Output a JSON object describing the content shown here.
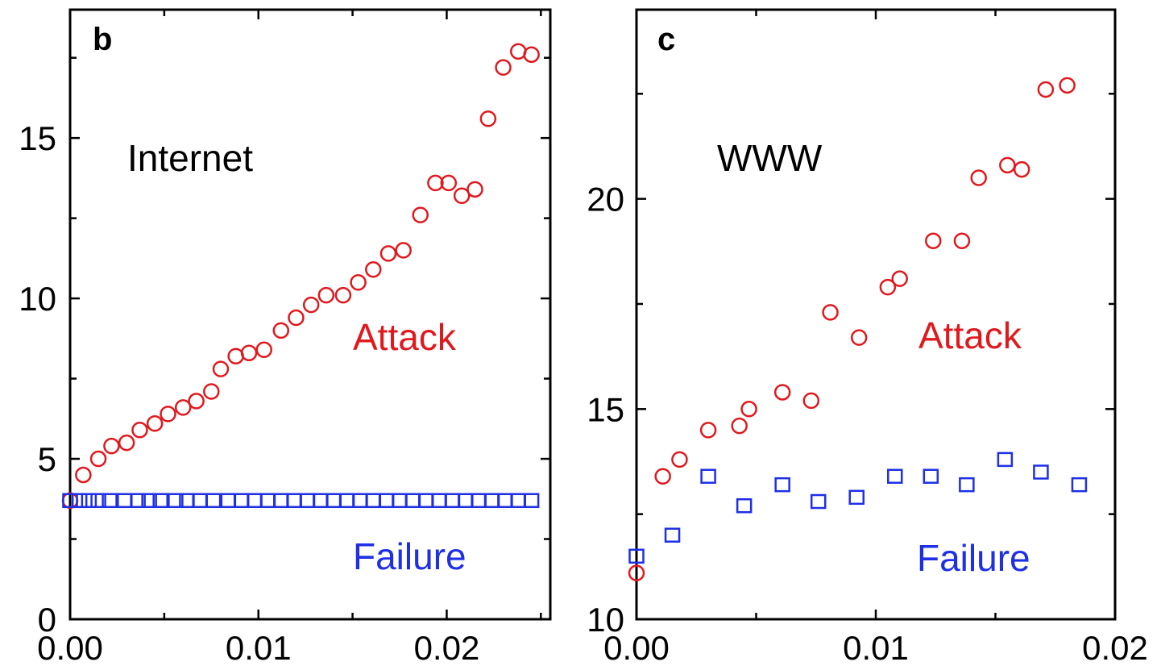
{
  "colors": {
    "attack": "#e0191e",
    "failure": "#1f2fe6",
    "axis": "#000000"
  },
  "chart_data": [
    {
      "type": "scatter",
      "panel_label": "b",
      "annotation": "Internet",
      "xlim": [
        0,
        0.0255
      ],
      "ylim": [
        0,
        19
      ],
      "x_ticks": [
        0.0,
        0.01,
        0.02
      ],
      "x_tick_labels": [
        "0.00",
        "0.01",
        "0.02"
      ],
      "y_ticks": [
        0,
        5,
        10,
        15
      ],
      "y_tick_labels": [
        "0",
        "5",
        "10",
        "15"
      ],
      "series": [
        {
          "name": "Attack",
          "marker": "circle",
          "color": "#e0191e",
          "points": [
            [
              0.0,
              3.7
            ],
            [
              0.0007,
              4.5
            ],
            [
              0.0015,
              5.0
            ],
            [
              0.0022,
              5.4
            ],
            [
              0.003,
              5.5
            ],
            [
              0.0037,
              5.9
            ],
            [
              0.0045,
              6.1
            ],
            [
              0.0052,
              6.4
            ],
            [
              0.006,
              6.6
            ],
            [
              0.0067,
              6.8
            ],
            [
              0.0075,
              7.1
            ],
            [
              0.008,
              7.8
            ],
            [
              0.0088,
              8.2
            ],
            [
              0.0095,
              8.3
            ],
            [
              0.0103,
              8.4
            ],
            [
              0.0112,
              9.0
            ],
            [
              0.012,
              9.4
            ],
            [
              0.0128,
              9.8
            ],
            [
              0.0136,
              10.1
            ],
            [
              0.0145,
              10.1
            ],
            [
              0.0153,
              10.5
            ],
            [
              0.0161,
              10.9
            ],
            [
              0.0169,
              11.4
            ],
            [
              0.0177,
              11.5
            ],
            [
              0.0186,
              12.6
            ],
            [
              0.0194,
              13.6
            ],
            [
              0.0201,
              13.6
            ],
            [
              0.0208,
              13.2
            ],
            [
              0.0215,
              13.4
            ],
            [
              0.0222,
              15.6
            ],
            [
              0.023,
              17.2
            ],
            [
              0.0238,
              17.7
            ],
            [
              0.0245,
              17.6
            ]
          ]
        },
        {
          "name": "Failure",
          "marker": "square",
          "color": "#1f2fe6",
          "points": [
            [
              0.0,
              3.7
            ],
            [
              0.0005,
              3.7
            ],
            [
              0.001,
              3.7
            ],
            [
              0.0015,
              3.7
            ],
            [
              0.0021,
              3.7
            ],
            [
              0.0029,
              3.7
            ],
            [
              0.0036,
              3.7
            ],
            [
              0.0042,
              3.7
            ],
            [
              0.0048,
              3.7
            ],
            [
              0.0056,
              3.7
            ],
            [
              0.0062,
              3.7
            ],
            [
              0.0069,
              3.7
            ],
            [
              0.0076,
              3.7
            ],
            [
              0.0084,
              3.7
            ],
            [
              0.0091,
              3.7
            ],
            [
              0.0098,
              3.7
            ],
            [
              0.0105,
              3.7
            ],
            [
              0.0112,
              3.7
            ],
            [
              0.0119,
              3.7
            ],
            [
              0.0126,
              3.7
            ],
            [
              0.0133,
              3.7
            ],
            [
              0.014,
              3.7
            ],
            [
              0.0147,
              3.7
            ],
            [
              0.0154,
              3.7
            ],
            [
              0.0161,
              3.7
            ],
            [
              0.0168,
              3.7
            ],
            [
              0.0175,
              3.7
            ],
            [
              0.0182,
              3.7
            ],
            [
              0.0189,
              3.7
            ],
            [
              0.0196,
              3.7
            ],
            [
              0.0203,
              3.7
            ],
            [
              0.021,
              3.7
            ],
            [
              0.0217,
              3.7
            ],
            [
              0.0224,
              3.7
            ],
            [
              0.0231,
              3.7
            ],
            [
              0.0238,
              3.7
            ],
            [
              0.0245,
              3.7
            ]
          ]
        }
      ]
    },
    {
      "type": "scatter",
      "panel_label": "c",
      "annotation": "WWW",
      "xlim": [
        0,
        0.02
      ],
      "ylim": [
        10,
        24.5
      ],
      "x_ticks": [
        0.0,
        0.01,
        0.02
      ],
      "x_tick_labels": [
        "0.00",
        "0.01",
        "0.02"
      ],
      "y_ticks": [
        10,
        15,
        20
      ],
      "y_tick_labels": [
        "10",
        "15",
        "20"
      ],
      "series": [
        {
          "name": "Attack",
          "marker": "circle",
          "color": "#e0191e",
          "points": [
            [
              0.0,
              11.1
            ],
            [
              0.0011,
              13.4
            ],
            [
              0.0018,
              13.8
            ],
            [
              0.003,
              14.5
            ],
            [
              0.0043,
              14.6
            ],
            [
              0.0047,
              15.0
            ],
            [
              0.0061,
              15.4
            ],
            [
              0.0073,
              15.2
            ],
            [
              0.0081,
              17.3
            ],
            [
              0.0093,
              16.7
            ],
            [
              0.0105,
              17.9
            ],
            [
              0.011,
              18.1
            ],
            [
              0.0124,
              19.0
            ],
            [
              0.0136,
              19.0
            ],
            [
              0.0143,
              20.5
            ],
            [
              0.0155,
              20.8
            ],
            [
              0.0161,
              20.7
            ],
            [
              0.0171,
              22.6
            ],
            [
              0.018,
              22.7
            ]
          ]
        },
        {
          "name": "Failure",
          "marker": "square",
          "color": "#1f2fe6",
          "points": [
            [
              0.0,
              11.5
            ],
            [
              0.0015,
              12.0
            ],
            [
              0.003,
              13.4
            ],
            [
              0.0045,
              12.7
            ],
            [
              0.0061,
              13.2
            ],
            [
              0.0076,
              12.8
            ],
            [
              0.0092,
              12.9
            ],
            [
              0.0108,
              13.4
            ],
            [
              0.0123,
              13.4
            ],
            [
              0.0138,
              13.2
            ],
            [
              0.0154,
              13.8
            ],
            [
              0.0169,
              13.5
            ],
            [
              0.0185,
              13.2
            ]
          ]
        }
      ]
    }
  ]
}
